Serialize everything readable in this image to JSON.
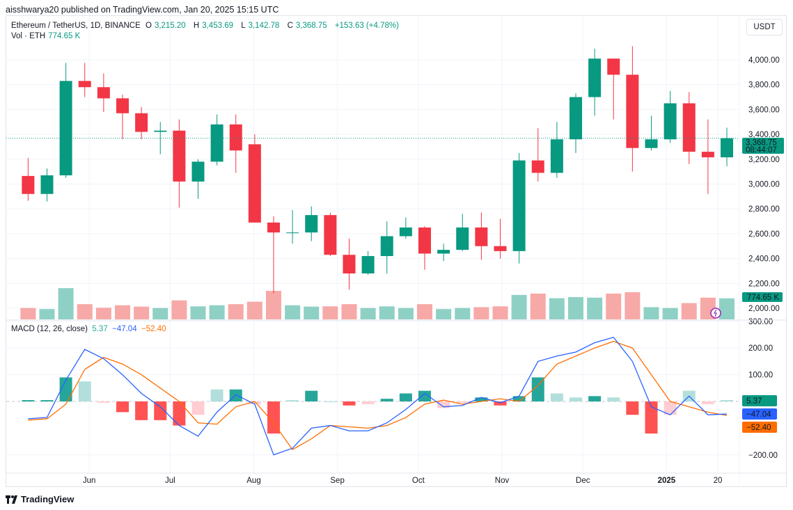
{
  "header": {
    "published": "aisshwarya20 published on TradingView.com, Jan 20, 2025 15:15 UTC"
  },
  "legend": {
    "symbol": "Ethereum / TetherUS, 1D, BINANCE",
    "o_label": "O",
    "o": "3,215.20",
    "h_label": "H",
    "h": "3,453.69",
    "l_label": "L",
    "l": "3,142.78",
    "c_label": "C",
    "c": "3,368.75",
    "change": "+153.63 (+4.78%)",
    "vol_label": "Vol · ETH",
    "vol": "774.65 K"
  },
  "currency": "USDT",
  "macd_legend": {
    "label": "MACD (12, 26, close)",
    "hist": "5.37",
    "macd": "−47.04",
    "signal": "−52.40"
  },
  "price_badge": {
    "price": "3,368.75",
    "countdown": "08:44:07"
  },
  "volume_badge": "774.65 K",
  "macd_badges": {
    "hist": "5.37",
    "macd": "−47.04",
    "signal": "−52.40"
  },
  "brand": "TradingView",
  "colors": {
    "up": "#089981",
    "down": "#f23645",
    "vol_up": "#8fd0c5",
    "vol_down": "#f7a9a7",
    "macd": "#2962ff",
    "signal": "#ff6d00",
    "hist_up": "#26a69a",
    "hist_up_light": "#b2dfdb",
    "hist_down": "#ff5252",
    "hist_down_light": "#ffcdd2"
  },
  "chart_data": [
    {
      "type": "candlestick",
      "y_ticks": [
        "2,000.00",
        "2,200.00",
        "2,400.00",
        "2,600.00",
        "2,800.00",
        "3,000.00",
        "3,200.00",
        "3,400.00",
        "3,600.00",
        "3,800.00",
        "4,000.00"
      ],
      "ylim": [
        2000,
        4200
      ],
      "x_ticks": [
        {
          "label": "Jun",
          "date": "2024-06-01"
        },
        {
          "label": "Jul",
          "date": "2024-07-01"
        },
        {
          "label": "Aug",
          "date": "2024-08-01"
        },
        {
          "label": "Sep",
          "date": "2024-09-01"
        },
        {
          "label": "Oct",
          "date": "2024-10-01"
        },
        {
          "label": "Nov",
          "date": "2024-11-01"
        },
        {
          "label": "Dec",
          "date": "2024-12-01"
        },
        {
          "label": "2025",
          "date": "2025-01-01"
        },
        {
          "label": "20",
          "date": "2025-01-20"
        }
      ],
      "current_price": 3368.75,
      "candles": [
        {
          "date": "2024-05-06",
          "o": 3065,
          "h": 3210,
          "l": 2865,
          "c": 2920,
          "v": 420
        },
        {
          "date": "2024-05-13",
          "o": 2920,
          "h": 3125,
          "l": 2860,
          "c": 3070,
          "v": 380
        },
        {
          "date": "2024-05-20",
          "o": 3070,
          "h": 3975,
          "l": 3050,
          "c": 3830,
          "v": 1150
        },
        {
          "date": "2024-05-27",
          "o": 3830,
          "h": 3975,
          "l": 3700,
          "c": 3780,
          "v": 560
        },
        {
          "date": "2024-06-03",
          "o": 3780,
          "h": 3890,
          "l": 3580,
          "c": 3690,
          "v": 430
        },
        {
          "date": "2024-06-10",
          "o": 3690,
          "h": 3720,
          "l": 3360,
          "c": 3570,
          "v": 520
        },
        {
          "date": "2024-06-17",
          "o": 3570,
          "h": 3620,
          "l": 3360,
          "c": 3420,
          "v": 470
        },
        {
          "date": "2024-06-24",
          "o": 3420,
          "h": 3500,
          "l": 3240,
          "c": 3430,
          "v": 420
        },
        {
          "date": "2024-07-01",
          "o": 3430,
          "h": 3520,
          "l": 2810,
          "c": 3020,
          "v": 700
        },
        {
          "date": "2024-07-08",
          "o": 3020,
          "h": 3200,
          "l": 2880,
          "c": 3180,
          "v": 480
        },
        {
          "date": "2024-07-15",
          "o": 3180,
          "h": 3560,
          "l": 3150,
          "c": 3480,
          "v": 520
        },
        {
          "date": "2024-07-22",
          "o": 3480,
          "h": 3560,
          "l": 3090,
          "c": 3270,
          "v": 560
        },
        {
          "date": "2024-07-29",
          "o": 3320,
          "h": 3400,
          "l": 2690,
          "c": 2690,
          "v": 650
        },
        {
          "date": "2024-08-05",
          "o": 2690,
          "h": 2740,
          "l": 2120,
          "c": 2610,
          "v": 1050
        },
        {
          "date": "2024-08-12",
          "o": 2610,
          "h": 2790,
          "l": 2520,
          "c": 2610,
          "v": 520
        },
        {
          "date": "2024-08-19",
          "o": 2610,
          "h": 2820,
          "l": 2540,
          "c": 2750,
          "v": 470
        },
        {
          "date": "2024-08-26",
          "o": 2750,
          "h": 2770,
          "l": 2420,
          "c": 2430,
          "v": 480
        },
        {
          "date": "2024-09-02",
          "o": 2430,
          "h": 2560,
          "l": 2150,
          "c": 2280,
          "v": 560
        },
        {
          "date": "2024-09-09",
          "o": 2280,
          "h": 2460,
          "l": 2270,
          "c": 2420,
          "v": 420
        },
        {
          "date": "2024-09-16",
          "o": 2420,
          "h": 2700,
          "l": 2280,
          "c": 2580,
          "v": 480
        },
        {
          "date": "2024-09-23",
          "o": 2580,
          "h": 2730,
          "l": 2560,
          "c": 2650,
          "v": 420
        },
        {
          "date": "2024-09-30",
          "o": 2650,
          "h": 2660,
          "l": 2310,
          "c": 2440,
          "v": 560
        },
        {
          "date": "2024-10-07",
          "o": 2440,
          "h": 2520,
          "l": 2380,
          "c": 2470,
          "v": 380
        },
        {
          "date": "2024-10-14",
          "o": 2470,
          "h": 2760,
          "l": 2460,
          "c": 2650,
          "v": 420
        },
        {
          "date": "2024-10-21",
          "o": 2650,
          "h": 2770,
          "l": 2390,
          "c": 2500,
          "v": 450
        },
        {
          "date": "2024-10-28",
          "o": 2500,
          "h": 2720,
          "l": 2400,
          "c": 2460,
          "v": 480
        },
        {
          "date": "2024-11-04",
          "o": 2460,
          "h": 3250,
          "l": 2360,
          "c": 3190,
          "v": 900
        },
        {
          "date": "2024-11-11",
          "o": 3190,
          "h": 3450,
          "l": 3020,
          "c": 3090,
          "v": 950
        },
        {
          "date": "2024-11-18",
          "o": 3090,
          "h": 3500,
          "l": 3050,
          "c": 3360,
          "v": 780
        },
        {
          "date": "2024-11-25",
          "o": 3360,
          "h": 3730,
          "l": 3250,
          "c": 3700,
          "v": 820
        },
        {
          "date": "2024-12-02",
          "o": 3700,
          "h": 4090,
          "l": 3550,
          "c": 4010,
          "v": 800
        },
        {
          "date": "2024-12-09",
          "o": 4010,
          "h": 4010,
          "l": 3520,
          "c": 3880,
          "v": 950
        },
        {
          "date": "2024-12-16",
          "o": 3880,
          "h": 4110,
          "l": 3100,
          "c": 3290,
          "v": 1000
        },
        {
          "date": "2024-12-23",
          "o": 3290,
          "h": 3550,
          "l": 3270,
          "c": 3360,
          "v": 450
        },
        {
          "date": "2024-12-30",
          "o": 3360,
          "h": 3750,
          "l": 3330,
          "c": 3650,
          "v": 420
        },
        {
          "date": "2025-01-06",
          "o": 3650,
          "h": 3740,
          "l": 3160,
          "c": 3260,
          "v": 600
        },
        {
          "date": "2025-01-13",
          "o": 3260,
          "h": 3520,
          "l": 2920,
          "c": 3215,
          "v": 800
        },
        {
          "date": "2025-01-20",
          "o": 3215,
          "h": 3453.69,
          "l": 3142.78,
          "c": 3368.75,
          "v": 774.65
        }
      ]
    },
    {
      "type": "line",
      "title": "MACD (12, 26, close)",
      "y_ticks": [
        "300.00",
        "200.00",
        "100.00",
        "−200.00"
      ],
      "ylim": [
        -260,
        300
      ],
      "series": [
        {
          "name": "MACD",
          "key": "macd"
        },
        {
          "name": "Signal",
          "key": "signal"
        }
      ],
      "points": [
        {
          "date": "2024-05-06",
          "macd": -65,
          "signal": -70
        },
        {
          "date": "2024-05-13",
          "macd": -60,
          "signal": -65
        },
        {
          "date": "2024-05-20",
          "macd": 80,
          "signal": -10
        },
        {
          "date": "2024-05-27",
          "macd": 195,
          "signal": 120
        },
        {
          "date": "2024-06-03",
          "macd": 160,
          "signal": 165
        },
        {
          "date": "2024-06-10",
          "macd": 100,
          "signal": 140
        },
        {
          "date": "2024-06-17",
          "macd": 30,
          "signal": 100
        },
        {
          "date": "2024-06-24",
          "macd": -20,
          "signal": 50
        },
        {
          "date": "2024-07-01",
          "macd": -90,
          "signal": 0
        },
        {
          "date": "2024-07-08",
          "macd": -130,
          "signal": -80
        },
        {
          "date": "2024-07-15",
          "macd": -40,
          "signal": -85
        },
        {
          "date": "2024-07-22",
          "macd": 25,
          "signal": -20
        },
        {
          "date": "2024-07-29",
          "macd": -10,
          "signal": 0
        },
        {
          "date": "2024-08-05",
          "macd": -200,
          "signal": -80
        },
        {
          "date": "2024-08-12",
          "macd": -175,
          "signal": -180
        },
        {
          "date": "2024-08-19",
          "macd": -100,
          "signal": -140
        },
        {
          "date": "2024-08-26",
          "macd": -90,
          "signal": -90
        },
        {
          "date": "2024-09-02",
          "macd": -110,
          "signal": -95
        },
        {
          "date": "2024-09-09",
          "macd": -110,
          "signal": -100
        },
        {
          "date": "2024-09-16",
          "macd": -80,
          "signal": -90
        },
        {
          "date": "2024-09-23",
          "macd": -30,
          "signal": -60
        },
        {
          "date": "2024-09-30",
          "macd": 30,
          "signal": -10
        },
        {
          "date": "2024-10-07",
          "macd": -20,
          "signal": 5
        },
        {
          "date": "2024-10-14",
          "macd": -15,
          "signal": -10
        },
        {
          "date": "2024-10-21",
          "macd": 15,
          "signal": 0
        },
        {
          "date": "2024-10-28",
          "macd": -5,
          "signal": 10
        },
        {
          "date": "2024-11-04",
          "macd": 20,
          "signal": 0
        },
        {
          "date": "2024-11-11",
          "macd": 150,
          "signal": 60
        },
        {
          "date": "2024-11-18",
          "macd": 170,
          "signal": 140
        },
        {
          "date": "2024-11-25",
          "macd": 185,
          "signal": 170
        },
        {
          "date": "2024-12-02",
          "macd": 220,
          "signal": 200
        },
        {
          "date": "2024-12-09",
          "macd": 240,
          "signal": 225
        },
        {
          "date": "2024-12-16",
          "macd": 150,
          "signal": 200
        },
        {
          "date": "2024-12-23",
          "macd": -20,
          "signal": 100
        },
        {
          "date": "2024-12-30",
          "macd": -50,
          "signal": 0
        },
        {
          "date": "2025-01-06",
          "macd": 20,
          "signal": -20
        },
        {
          "date": "2025-01-13",
          "macd": -50,
          "signal": -40
        },
        {
          "date": "2025-01-20",
          "macd": -47.04,
          "signal": -52.4
        }
      ]
    }
  ]
}
